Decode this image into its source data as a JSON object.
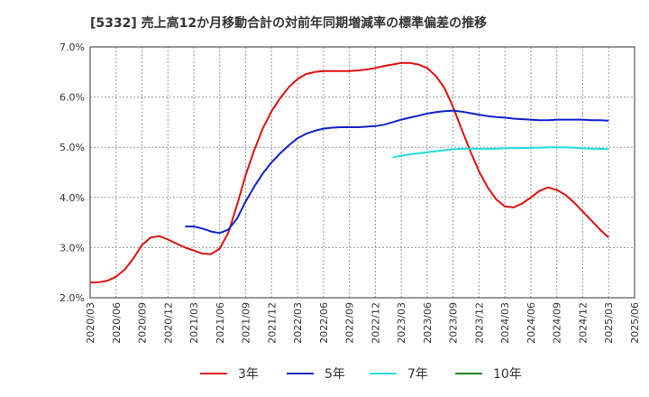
{
  "chart_data": {
    "type": "line",
    "title": "[5332]  売上高12か月移動合計の対前年同期増減率の標準偏差の推移",
    "xlabel": "",
    "ylabel": "",
    "ylim": [
      2.0,
      7.0
    ],
    "yticks": [
      "2.0%",
      "3.0%",
      "4.0%",
      "5.0%",
      "6.0%",
      "7.0%"
    ],
    "y_tick_values": [
      2.0,
      3.0,
      4.0,
      5.0,
      6.0,
      7.0
    ],
    "x_ticks": [
      "2020/03",
      "2020/06",
      "2020/09",
      "2020/12",
      "2021/03",
      "2021/06",
      "2021/09",
      "2021/12",
      "2022/03",
      "2022/06",
      "2022/09",
      "2022/12",
      "2023/03",
      "2023/06",
      "2023/09",
      "2023/12",
      "2024/03",
      "2024/06",
      "2024/09",
      "2024/12",
      "2025/03",
      "2025/06"
    ],
    "grid": true,
    "legend_position": "bottom",
    "series": [
      {
        "name": "3年",
        "color": "#dd1111",
        "points": [
          [
            "2020/03",
            2.3
          ],
          [
            "2020/04",
            2.31
          ],
          [
            "2020/05",
            2.34
          ],
          [
            "2020/06",
            2.42
          ],
          [
            "2020/07",
            2.56
          ],
          [
            "2020/08",
            2.78
          ],
          [
            "2020/09",
            3.05
          ],
          [
            "2020/10",
            3.2
          ],
          [
            "2020/11",
            3.23
          ],
          [
            "2020/12",
            3.16
          ],
          [
            "2021/01",
            3.08
          ],
          [
            "2021/02",
            3.0
          ],
          [
            "2021/03",
            2.94
          ],
          [
            "2021/04",
            2.88
          ],
          [
            "2021/05",
            2.87
          ],
          [
            "2021/06",
            2.98
          ],
          [
            "2021/07",
            3.3
          ],
          [
            "2021/08",
            3.85
          ],
          [
            "2021/09",
            4.45
          ],
          [
            "2021/10",
            4.95
          ],
          [
            "2021/11",
            5.38
          ],
          [
            "2021/12",
            5.72
          ],
          [
            "2022/01",
            5.98
          ],
          [
            "2022/02",
            6.2
          ],
          [
            "2022/03",
            6.36
          ],
          [
            "2022/04",
            6.46
          ],
          [
            "2022/05",
            6.5
          ],
          [
            "2022/06",
            6.52
          ],
          [
            "2022/07",
            6.52
          ],
          [
            "2022/08",
            6.52
          ],
          [
            "2022/09",
            6.52
          ],
          [
            "2022/10",
            6.53
          ],
          [
            "2022/11",
            6.55
          ],
          [
            "2022/12",
            6.58
          ],
          [
            "2023/01",
            6.62
          ],
          [
            "2023/02",
            6.65
          ],
          [
            "2023/03",
            6.68
          ],
          [
            "2023/04",
            6.68
          ],
          [
            "2023/05",
            6.65
          ],
          [
            "2023/06",
            6.58
          ],
          [
            "2023/07",
            6.42
          ],
          [
            "2023/08",
            6.18
          ],
          [
            "2023/09",
            5.8
          ],
          [
            "2023/10",
            5.35
          ],
          [
            "2023/11",
            4.92
          ],
          [
            "2023/12",
            4.52
          ],
          [
            "2024/01",
            4.2
          ],
          [
            "2024/02",
            3.96
          ],
          [
            "2024/03",
            3.82
          ],
          [
            "2024/04",
            3.8
          ],
          [
            "2024/05",
            3.88
          ],
          [
            "2024/06",
            4.0
          ],
          [
            "2024/07",
            4.13
          ],
          [
            "2024/08",
            4.2
          ],
          [
            "2024/09",
            4.15
          ],
          [
            "2024/10",
            4.05
          ],
          [
            "2024/11",
            3.9
          ],
          [
            "2024/12",
            3.72
          ],
          [
            "2025/01",
            3.54
          ],
          [
            "2025/02",
            3.36
          ],
          [
            "2025/03",
            3.2
          ]
        ]
      },
      {
        "name": "5年",
        "color": "#1122cc",
        "points": [
          [
            "2021/02",
            3.42
          ],
          [
            "2021/03",
            3.42
          ],
          [
            "2021/04",
            3.38
          ],
          [
            "2021/05",
            3.32
          ],
          [
            "2021/06",
            3.29
          ],
          [
            "2021/07",
            3.36
          ],
          [
            "2021/08",
            3.58
          ],
          [
            "2021/09",
            3.92
          ],
          [
            "2021/10",
            4.22
          ],
          [
            "2021/11",
            4.48
          ],
          [
            "2021/12",
            4.7
          ],
          [
            "2022/01",
            4.88
          ],
          [
            "2022/02",
            5.04
          ],
          [
            "2022/03",
            5.18
          ],
          [
            "2022/04",
            5.27
          ],
          [
            "2022/05",
            5.33
          ],
          [
            "2022/06",
            5.37
          ],
          [
            "2022/07",
            5.39
          ],
          [
            "2022/08",
            5.4
          ],
          [
            "2022/09",
            5.4
          ],
          [
            "2022/10",
            5.4
          ],
          [
            "2022/11",
            5.41
          ],
          [
            "2022/12",
            5.42
          ],
          [
            "2023/01",
            5.45
          ],
          [
            "2023/02",
            5.5
          ],
          [
            "2023/03",
            5.55
          ],
          [
            "2023/04",
            5.59
          ],
          [
            "2023/05",
            5.63
          ],
          [
            "2023/06",
            5.67
          ],
          [
            "2023/07",
            5.7
          ],
          [
            "2023/08",
            5.72
          ],
          [
            "2023/09",
            5.73
          ],
          [
            "2023/10",
            5.71
          ],
          [
            "2023/11",
            5.68
          ],
          [
            "2023/12",
            5.65
          ],
          [
            "2024/01",
            5.62
          ],
          [
            "2024/02",
            5.6
          ],
          [
            "2024/03",
            5.59
          ],
          [
            "2024/04",
            5.57
          ],
          [
            "2024/05",
            5.56
          ],
          [
            "2024/06",
            5.55
          ],
          [
            "2024/07",
            5.54
          ],
          [
            "2024/08",
            5.54
          ],
          [
            "2024/09",
            5.55
          ],
          [
            "2024/10",
            5.55
          ],
          [
            "2024/11",
            5.55
          ],
          [
            "2024/12",
            5.55
          ],
          [
            "2025/01",
            5.54
          ],
          [
            "2025/02",
            5.54
          ],
          [
            "2025/03",
            5.53
          ]
        ]
      },
      {
        "name": "7年",
        "color": "#22dddd",
        "points": [
          [
            "2023/02",
            4.8
          ],
          [
            "2023/03",
            4.83
          ],
          [
            "2023/04",
            4.86
          ],
          [
            "2023/05",
            4.88
          ],
          [
            "2023/06",
            4.9
          ],
          [
            "2023/07",
            4.92
          ],
          [
            "2023/08",
            4.94
          ],
          [
            "2023/09",
            4.96
          ],
          [
            "2023/10",
            4.97
          ],
          [
            "2023/11",
            4.97
          ],
          [
            "2023/12",
            4.97
          ],
          [
            "2024/01",
            4.97
          ],
          [
            "2024/02",
            4.97
          ],
          [
            "2024/03",
            4.98
          ],
          [
            "2024/04",
            4.98
          ],
          [
            "2024/05",
            4.98
          ],
          [
            "2024/06",
            4.99
          ],
          [
            "2024/07",
            4.99
          ],
          [
            "2024/08",
            5.0
          ],
          [
            "2024/09",
            5.0
          ],
          [
            "2024/10",
            5.0
          ],
          [
            "2024/11",
            4.99
          ],
          [
            "2024/12",
            4.98
          ],
          [
            "2025/01",
            4.97
          ],
          [
            "2025/02",
            4.97
          ],
          [
            "2025/03",
            4.96
          ]
        ]
      },
      {
        "name": "10年",
        "color": "#228822",
        "points": []
      }
    ]
  }
}
